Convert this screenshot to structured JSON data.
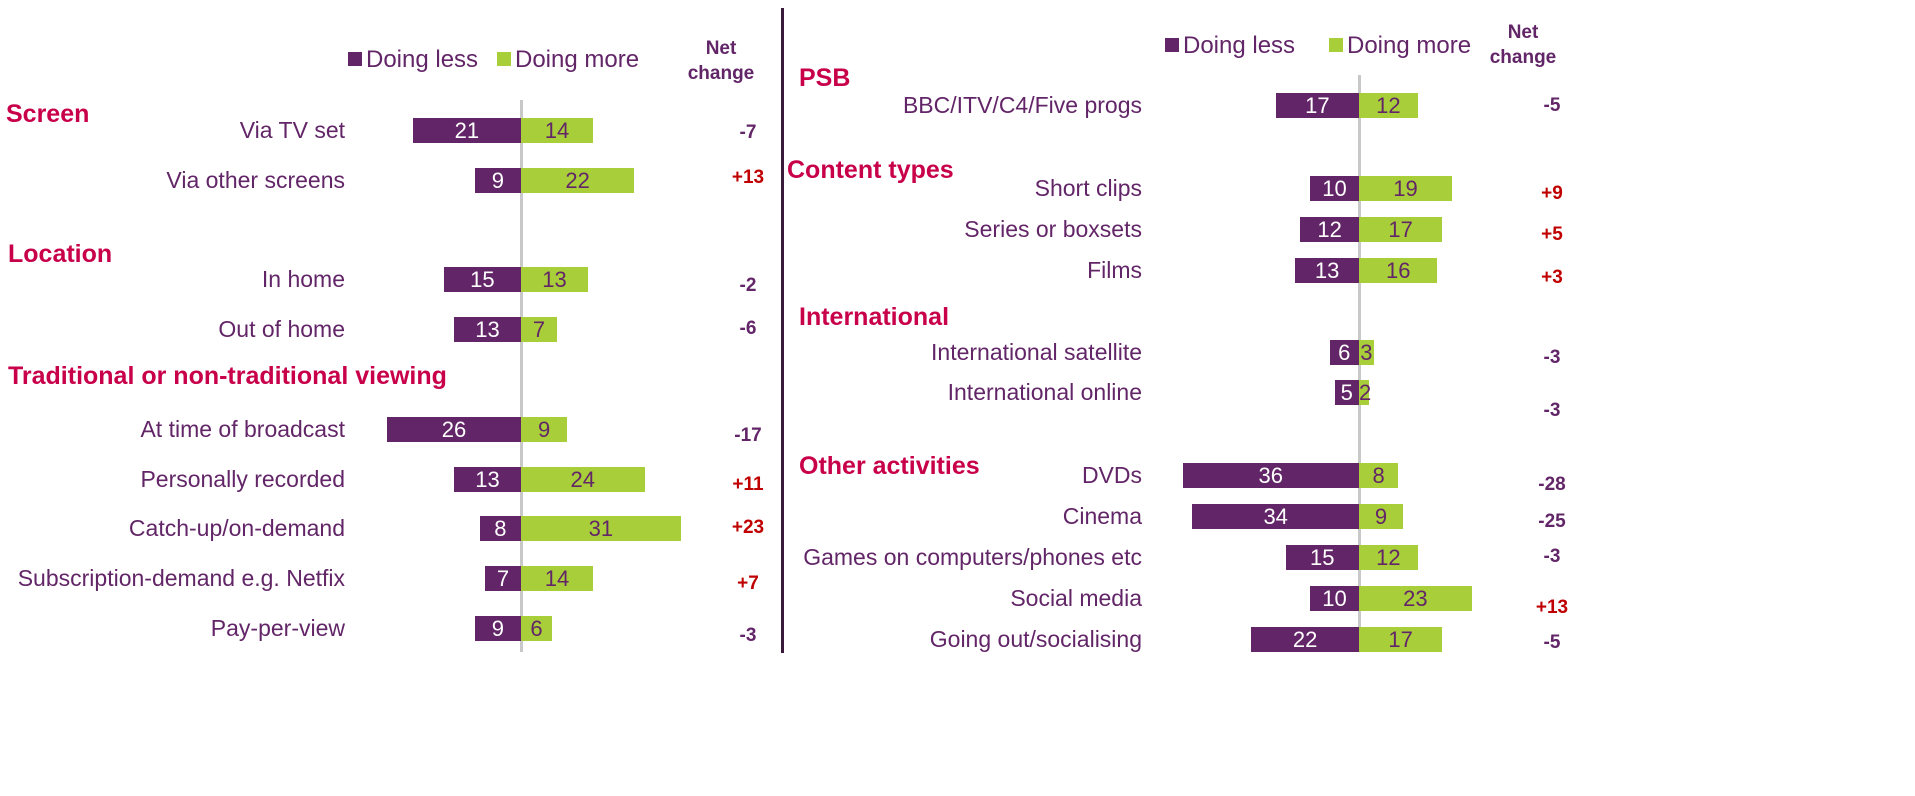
{
  "chart_data": [
    {
      "type": "diverging-bar",
      "series": [
        {
          "name": "Doing less",
          "color": "#622567"
        },
        {
          "name": "Doing more",
          "color": "#a8cf3a"
        }
      ],
      "net_title": "Net change",
      "groups": [
        {
          "title": "Screen",
          "categories": [
            "Via TV set",
            "Via other screens"
          ],
          "doing_less": [
            21,
            9
          ],
          "doing_more": [
            14,
            22
          ],
          "net": [
            -7,
            13
          ],
          "net_labels": [
            "-7",
            "+13"
          ]
        },
        {
          "title": "Location",
          "categories": [
            "In home",
            "Out of home"
          ],
          "doing_less": [
            15,
            13
          ],
          "doing_more": [
            13,
            7
          ],
          "net": [
            -2,
            -6
          ],
          "net_labels": [
            "-2",
            "-6"
          ]
        },
        {
          "title": "Traditional or non-traditional viewing",
          "categories": [
            "At time of broadcast",
            "Personally recorded",
            "Catch-up/on-demand",
            "Subscription-demand e.g. Netfix",
            "Pay-per-view"
          ],
          "doing_less": [
            26,
            13,
            8,
            7,
            9
          ],
          "doing_more": [
            9,
            24,
            31,
            14,
            6
          ],
          "net": [
            -17,
            11,
            23,
            7,
            -3
          ],
          "net_labels": [
            "-17",
            "+11",
            "+23",
            "+7",
            "-3"
          ]
        }
      ]
    },
    {
      "type": "diverging-bar",
      "series": [
        {
          "name": "Doing less",
          "color": "#622567"
        },
        {
          "name": "Doing more",
          "color": "#a8cf3a"
        }
      ],
      "net_title": "Net change",
      "groups": [
        {
          "title": "PSB",
          "categories": [
            "BBC/ITV/C4/Five progs"
          ],
          "doing_less": [
            17
          ],
          "doing_more": [
            12
          ],
          "net": [
            -5
          ],
          "net_labels": [
            "-5"
          ]
        },
        {
          "title": "Content types",
          "categories": [
            "Short clips",
            "Series or boxsets",
            "Films"
          ],
          "doing_less": [
            10,
            12,
            13
          ],
          "doing_more": [
            19,
            17,
            16
          ],
          "net": [
            9,
            5,
            3
          ],
          "net_labels": [
            "+9",
            "+5",
            "+3"
          ]
        },
        {
          "title": "International",
          "categories": [
            "International satellite",
            "International online"
          ],
          "doing_less": [
            6,
            5
          ],
          "doing_more": [
            3,
            2
          ],
          "net": [
            -3,
            -3
          ],
          "net_labels": [
            "-3",
            "-3"
          ]
        },
        {
          "title": "Other activities",
          "categories": [
            "DVDs",
            "Cinema",
            "Games on computers/phones etc",
            "Social media",
            "Going out/socialising"
          ],
          "doing_less": [
            36,
            34,
            15,
            10,
            22
          ],
          "doing_more": [
            8,
            9,
            12,
            23,
            17
          ],
          "net": [
            -28,
            -25,
            -3,
            13,
            -5
          ],
          "net_labels": [
            "-28",
            "-25",
            "-3",
            "+13",
            "-5"
          ]
        }
      ]
    }
  ]
}
